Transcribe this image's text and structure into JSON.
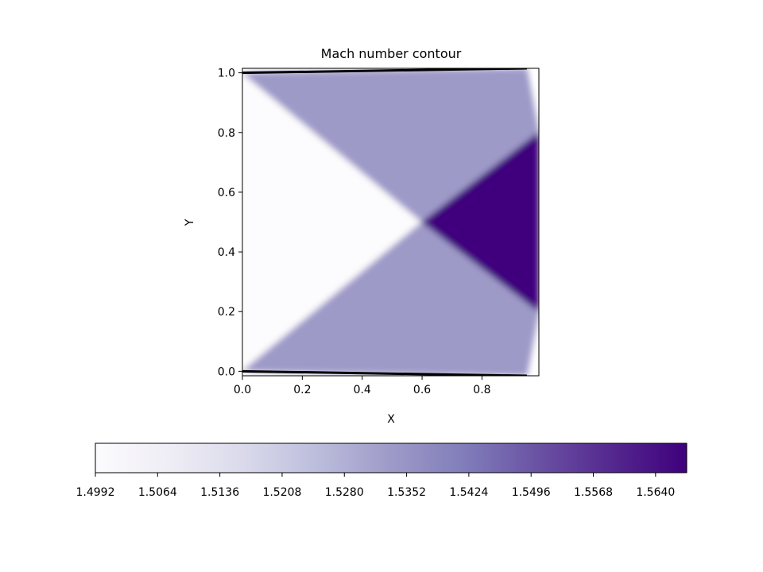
{
  "chart_data": {
    "type": "heatmap",
    "title": "Mach number contour",
    "xlabel": "X",
    "ylabel": "Y",
    "xlim": [
      0.0,
      0.99
    ],
    "ylim": [
      -0.015,
      1.015
    ],
    "x_ticks": [
      "0.0",
      "0.2",
      "0.4",
      "0.6",
      "0.8"
    ],
    "y_ticks": [
      "0.0",
      "0.2",
      "0.4",
      "0.6",
      "0.8",
      "1.0"
    ],
    "colormap": "Purples",
    "colorbar": {
      "orientation": "horizontal",
      "placement": "bottom",
      "range": [
        1.4992,
        1.5676
      ],
      "ticks": [
        "1.4992",
        "1.5064",
        "1.5136",
        "1.5208",
        "1.5280",
        "1.5352",
        "1.5424",
        "1.5496",
        "1.5568",
        "1.5640"
      ]
    },
    "regions": [
      {
        "zone": "freestream",
        "mach": 1.4992,
        "color": "#fcfbfd",
        "points": [
          [
            0,
            1.0
          ],
          [
            0.6,
            0.5
          ],
          [
            0,
            0.0
          ]
        ]
      },
      {
        "zone": "after-upper-shock",
        "mach": 1.5322,
        "color": "#9e9ac8",
        "points": [
          [
            0,
            1.0
          ],
          [
            0.95,
            1.015
          ],
          [
            0.99,
            0.8
          ],
          [
            0.6,
            0.5
          ]
        ]
      },
      {
        "zone": "after-lower-shock",
        "mach": 1.5322,
        "color": "#9e9ac8",
        "points": [
          [
            0,
            0.0
          ],
          [
            0.6,
            0.5
          ],
          [
            0.99,
            0.2
          ],
          [
            0.95,
            -0.015
          ]
        ]
      },
      {
        "zone": "after-shock-intersection",
        "mach": 1.5662,
        "color": "#3f007d",
        "points": [
          [
            0.6,
            0.5
          ],
          [
            0.99,
            0.8
          ],
          [
            0.99,
            0.2
          ]
        ]
      }
    ],
    "walls": [
      {
        "name": "upper-wall",
        "points": [
          [
            0,
            1.0
          ],
          [
            0.95,
            1.015
          ]
        ]
      },
      {
        "name": "lower-wall",
        "points": [
          [
            0,
            0.0
          ],
          [
            0.95,
            -0.015
          ]
        ]
      }
    ]
  }
}
